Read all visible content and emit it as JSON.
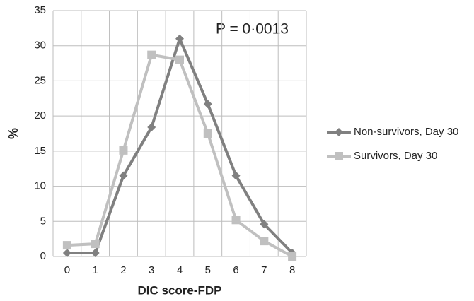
{
  "chart_data": {
    "type": "line",
    "annotation": "P = 0·0013",
    "x_label": "DIC score-FDP",
    "y_label": "%",
    "categories": [
      "0",
      "1",
      "2",
      "3",
      "4",
      "5",
      "6",
      "7",
      "8"
    ],
    "series": [
      {
        "name": "Non-survivors, Day 30",
        "color": "#808080",
        "marker": "diamond",
        "values": [
          0.5,
          0.5,
          11.5,
          18.4,
          31,
          21.7,
          11.5,
          4.6,
          0.5
        ]
      },
      {
        "name": "Survivors, Day 30",
        "color": "#c0c0c0",
        "marker": "square",
        "values": [
          1.6,
          1.8,
          15.1,
          28.7,
          28,
          17.5,
          5.2,
          2.2,
          0
        ]
      }
    ],
    "ylim": [
      0,
      35
    ],
    "yticks": [
      0,
      5,
      10,
      15,
      20,
      25,
      30,
      35
    ],
    "grid": true,
    "legend": "right"
  }
}
